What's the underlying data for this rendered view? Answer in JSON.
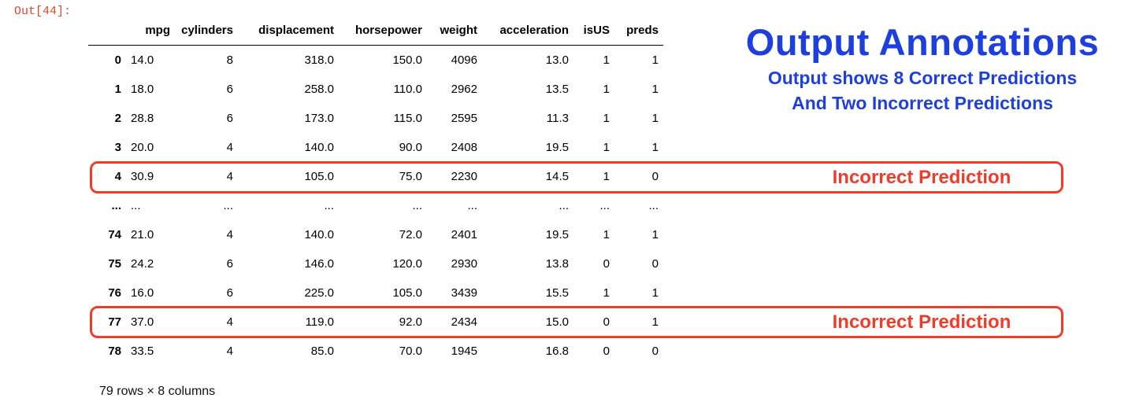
{
  "cell": {
    "prompt": "Out[44]:"
  },
  "dataframe": {
    "columns": [
      "",
      "mpg",
      "cylinders",
      "displacement",
      "horsepower",
      "weight",
      "acceleration",
      "isUS",
      "preds"
    ],
    "rows": [
      [
        "0",
        "14.0",
        "8",
        "318.0",
        "150.0",
        "4096",
        "13.0",
        "1",
        "1"
      ],
      [
        "1",
        "18.0",
        "6",
        "258.0",
        "110.0",
        "2962",
        "13.5",
        "1",
        "1"
      ],
      [
        "2",
        "28.8",
        "6",
        "173.0",
        "115.0",
        "2595",
        "11.3",
        "1",
        "1"
      ],
      [
        "3",
        "20.0",
        "4",
        "140.0",
        "90.0",
        "2408",
        "19.5",
        "1",
        "1"
      ],
      [
        "4",
        "30.9",
        "4",
        "105.0",
        "75.0",
        "2230",
        "14.5",
        "1",
        "0"
      ],
      [
        "...",
        "...",
        "...",
        "...",
        "...",
        "...",
        "...",
        "...",
        "..."
      ],
      [
        "74",
        "21.0",
        "4",
        "140.0",
        "72.0",
        "2401",
        "19.5",
        "1",
        "1"
      ],
      [
        "75",
        "24.2",
        "6",
        "146.0",
        "120.0",
        "2930",
        "13.8",
        "0",
        "0"
      ],
      [
        "76",
        "16.0",
        "6",
        "225.0",
        "105.0",
        "3439",
        "15.5",
        "1",
        "1"
      ],
      [
        "77",
        "37.0",
        "4",
        "119.0",
        "92.0",
        "2434",
        "15.0",
        "0",
        "1"
      ],
      [
        "78",
        "33.5",
        "4",
        "85.0",
        "70.0",
        "1945",
        "16.8",
        "0",
        "0"
      ]
    ],
    "caption": "79 rows × 8 columns"
  },
  "annotations": {
    "title": "Output Annotations",
    "subtitle_line1": "Output shows 8 Correct Predictions",
    "subtitle_line2": "And Two Incorrect Predictions",
    "highlight_label": "Incorrect Prediction",
    "highlight_color": "#ee3c2a",
    "title_color": "#1d3fe0"
  }
}
